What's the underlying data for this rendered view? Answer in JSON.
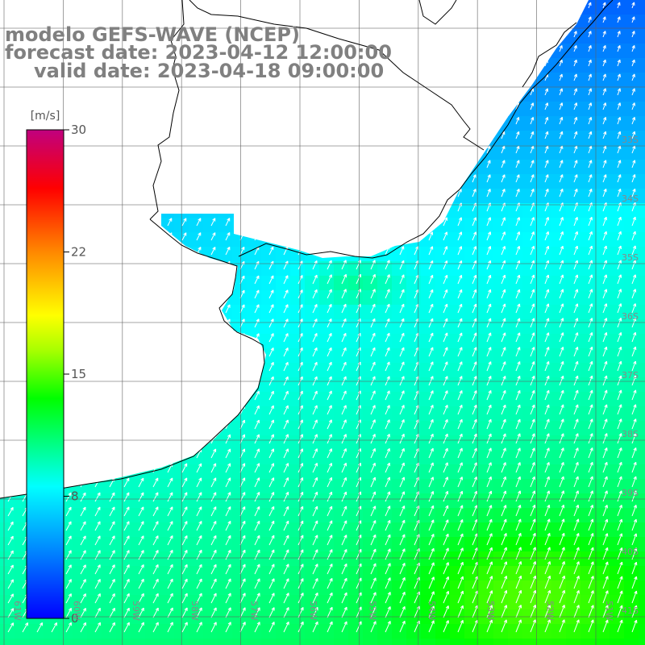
{
  "title": {
    "model": "modelo GEFS-WAVE (NCEP)",
    "forecast": "forecast date: 2023-04-12 12:00:00",
    "valid": "valid date: 2023-04-18 09:00:00"
  },
  "colorbar": {
    "unit": "[m/s]",
    "min": 0,
    "max": 30,
    "ticks": [
      "30",
      "22",
      "15",
      "8",
      "0"
    ],
    "tick_values": [
      30,
      22.5,
      15,
      7.5,
      0
    ],
    "colors": [
      "#0000ff",
      "#0088ff",
      "#00ffff",
      "#00ff00",
      "#ffff00",
      "#ff8800",
      "#ff0000",
      "#c0007f"
    ]
  },
  "chart_data": {
    "type": "heatmap",
    "variable": "wind speed",
    "unit": "[m/s]",
    "lon_range": [
      -61,
      -50
    ],
    "lat_range": [
      -41,
      -31
    ],
    "lon_labels": [
      "61W",
      "60W",
      "59W",
      "58W",
      "57W",
      "56W",
      "55W",
      "54W",
      "53W",
      "52W",
      "51W"
    ],
    "lat_labels": [
      "33S",
      "34S",
      "35S",
      "36S",
      "37S",
      "38S",
      "39S",
      "40S",
      "41S"
    ],
    "speed_scale": [
      0,
      30
    ],
    "wind_direction": "from southwest"
  }
}
